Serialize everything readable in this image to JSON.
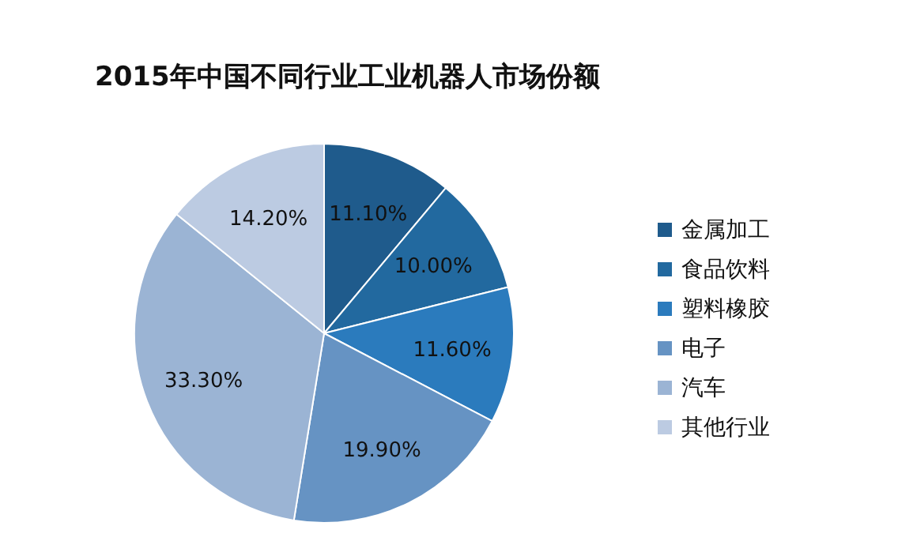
{
  "chart_data": {
    "type": "pie",
    "title": "2015年中国不同行业工业机器人市场份额",
    "categories": [
      "金属加工",
      "食品饮料",
      "塑料橡胶",
      "电子",
      "汽车",
      "其他行业"
    ],
    "values": [
      11.1,
      10.0,
      11.6,
      19.9,
      33.3,
      14.2
    ],
    "colors": [
      "#1f5b8c",
      "#22699f",
      "#2b7bbd",
      "#6693c3",
      "#9bb4d4",
      "#bccbe2"
    ],
    "value_labels": [
      "11.10%",
      "10.00%",
      "11.60%",
      "19.90%",
      "33.30%",
      "14.20%"
    ],
    "legend": "right"
  }
}
